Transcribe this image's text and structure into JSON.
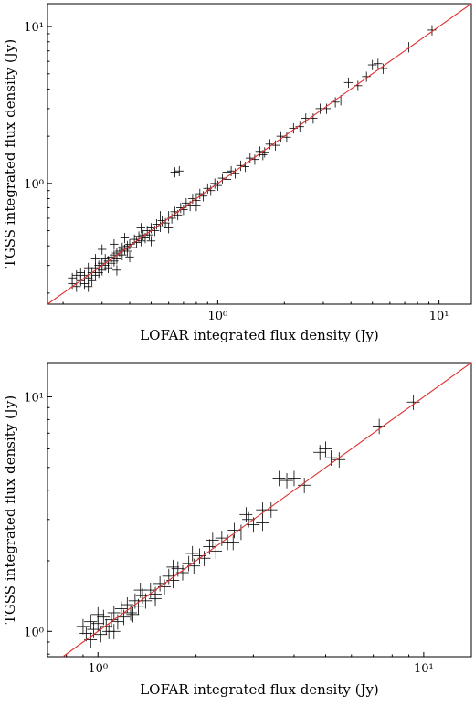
{
  "chart_data": [
    {
      "type": "scatter",
      "xlabel": "LOFAR integrated flux density (Jy)",
      "ylabel": "TGSS integrated flux density (Jy)",
      "xscale": "log",
      "yscale": "log",
      "xlim": [
        0.17,
        14
      ],
      "ylim": [
        0.17,
        14
      ],
      "xticks": [
        {
          "value": 1,
          "label": "10⁰"
        },
        {
          "value": 10,
          "label": "10¹"
        }
      ],
      "yticks": [
        {
          "value": 1,
          "label": "10⁰"
        },
        {
          "value": 10,
          "label": "10¹"
        }
      ],
      "grid": false,
      "reference_line": "y = x",
      "error_bars": true,
      "points": [
        [
          0.22,
          0.23
        ],
        [
          0.22,
          0.25
        ],
        [
          0.23,
          0.22
        ],
        [
          0.23,
          0.26
        ],
        [
          0.24,
          0.24
        ],
        [
          0.24,
          0.27
        ],
        [
          0.25,
          0.23
        ],
        [
          0.25,
          0.26
        ],
        [
          0.26,
          0.25
        ],
        [
          0.26,
          0.29
        ],
        [
          0.27,
          0.27
        ],
        [
          0.27,
          0.24
        ],
        [
          0.28,
          0.29
        ],
        [
          0.28,
          0.26
        ],
        [
          0.29,
          0.3
        ],
        [
          0.29,
          0.27
        ],
        [
          0.3,
          0.31
        ],
        [
          0.3,
          0.28
        ],
        [
          0.31,
          0.3
        ],
        [
          0.31,
          0.33
        ],
        [
          0.32,
          0.32
        ],
        [
          0.32,
          0.29
        ],
        [
          0.33,
          0.34
        ],
        [
          0.33,
          0.31
        ],
        [
          0.34,
          0.35
        ],
        [
          0.34,
          0.32
        ],
        [
          0.35,
          0.36
        ],
        [
          0.35,
          0.33
        ],
        [
          0.36,
          0.37
        ],
        [
          0.37,
          0.35
        ],
        [
          0.37,
          0.39
        ],
        [
          0.38,
          0.38
        ],
        [
          0.39,
          0.4
        ],
        [
          0.39,
          0.37
        ],
        [
          0.4,
          0.41
        ],
        [
          0.41,
          0.39
        ],
        [
          0.42,
          0.44
        ],
        [
          0.43,
          0.42
        ],
        [
          0.44,
          0.46
        ],
        [
          0.45,
          0.43
        ],
        [
          0.46,
          0.47
        ],
        [
          0.47,
          0.45
        ],
        [
          0.48,
          0.5
        ],
        [
          0.49,
          0.47
        ],
        [
          0.5,
          0.52
        ],
        [
          0.52,
          0.5
        ],
        [
          0.53,
          0.55
        ],
        [
          0.55,
          0.53
        ],
        [
          0.56,
          0.58
        ],
        [
          0.58,
          0.56
        ],
        [
          0.6,
          0.62
        ],
        [
          0.62,
          0.6
        ],
        [
          0.64,
          0.66
        ],
        [
          0.66,
          0.63
        ],
        [
          0.68,
          0.7
        ],
        [
          0.7,
          0.68
        ],
        [
          0.72,
          0.75
        ],
        [
          0.75,
          0.72
        ],
        [
          0.77,
          0.8
        ],
        [
          0.8,
          0.78
        ],
        [
          0.83,
          0.86
        ],
        [
          0.86,
          0.83
        ],
        [
          0.9,
          0.93
        ],
        [
          0.93,
          0.9
        ],
        [
          0.97,
          1.0
        ],
        [
          1.0,
          0.97
        ],
        [
          1.05,
          1.08
        ],
        [
          1.1,
          1.06
        ],
        [
          1.15,
          1.2
        ],
        [
          1.2,
          1.16
        ],
        [
          1.27,
          1.3
        ],
        [
          1.33,
          1.28
        ],
        [
          1.4,
          1.45
        ],
        [
          1.47,
          1.42
        ],
        [
          1.55,
          1.6
        ],
        [
          1.63,
          1.58
        ],
        [
          1.72,
          1.78
        ],
        [
          1.82,
          1.75
        ],
        [
          1.93,
          2.0
        ],
        [
          2.05,
          1.97
        ],
        [
          2.2,
          2.25
        ],
        [
          2.35,
          2.3
        ],
        [
          2.5,
          2.6
        ],
        [
          2.7,
          2.6
        ],
        [
          2.9,
          3.0
        ],
        [
          3.1,
          3.0
        ],
        [
          3.4,
          3.3
        ],
        [
          3.6,
          3.4
        ],
        [
          3.9,
          4.4
        ],
        [
          4.3,
          4.2
        ],
        [
          4.7,
          4.8
        ],
        [
          5.0,
          5.7
        ],
        [
          5.3,
          5.8
        ],
        [
          5.6,
          5.4
        ],
        [
          7.3,
          7.4
        ],
        [
          9.3,
          9.5
        ],
        [
          0.34,
          0.41
        ],
        [
          0.3,
          0.38
        ],
        [
          0.45,
          0.52
        ],
        [
          0.67,
          1.2
        ],
        [
          0.64,
          1.18
        ],
        [
          0.26,
          0.22
        ],
        [
          0.4,
          0.34
        ],
        [
          0.6,
          0.52
        ],
        [
          0.35,
          0.28
        ],
        [
          0.28,
          0.33
        ],
        [
          0.5,
          0.43
        ],
        [
          0.38,
          0.45
        ],
        [
          0.55,
          0.62
        ],
        [
          0.8,
          0.72
        ],
        [
          1.1,
          1.18
        ],
        [
          1.6,
          1.52
        ]
      ]
    },
    {
      "type": "scatter",
      "xlabel": "LOFAR integrated flux density (Jy)",
      "ylabel": "TGSS integrated flux density (Jy)",
      "xscale": "log",
      "yscale": "log",
      "xlim": [
        0.7,
        14
      ],
      "ylim": [
        0.78,
        14
      ],
      "xticks": [
        {
          "value": 1,
          "label": "10⁰"
        },
        {
          "value": 10,
          "label": "10¹"
        }
      ],
      "yticks": [
        {
          "value": 1,
          "label": "10⁰"
        },
        {
          "value": 10,
          "label": "10¹"
        }
      ],
      "grid": false,
      "reference_line": "y = x",
      "error_bars": true,
      "points": [
        [
          0.9,
          1.05
        ],
        [
          0.92,
          0.98
        ],
        [
          0.95,
          1.1
        ],
        [
          0.97,
          1.02
        ],
        [
          1.0,
          1.08
        ],
        [
          1.02,
          0.97
        ],
        [
          1.04,
          1.15
        ],
        [
          1.06,
          1.05
        ],
        [
          1.08,
          1.0
        ],
        [
          1.1,
          1.12
        ],
        [
          1.12,
          1.2
        ],
        [
          1.15,
          1.1
        ],
        [
          1.18,
          1.25
        ],
        [
          1.2,
          1.15
        ],
        [
          1.23,
          1.3
        ],
        [
          1.26,
          1.2
        ],
        [
          1.3,
          1.35
        ],
        [
          1.33,
          1.28
        ],
        [
          1.37,
          1.42
        ],
        [
          1.4,
          1.35
        ],
        [
          1.45,
          1.5
        ],
        [
          1.5,
          1.44
        ],
        [
          1.55,
          1.6
        ],
        [
          1.6,
          1.55
        ],
        [
          1.65,
          1.72
        ],
        [
          1.7,
          1.65
        ],
        [
          1.76,
          1.85
        ],
        [
          1.82,
          1.78
        ],
        [
          1.9,
          1.95
        ],
        [
          1.97,
          1.9
        ],
        [
          2.05,
          2.1
        ],
        [
          2.12,
          2.05
        ],
        [
          2.2,
          2.3
        ],
        [
          2.3,
          2.2
        ],
        [
          2.4,
          2.5
        ],
        [
          2.5,
          2.4
        ],
        [
          2.62,
          2.7
        ],
        [
          2.75,
          2.65
        ],
        [
          2.9,
          3.0
        ],
        [
          3.0,
          2.85
        ],
        [
          3.2,
          3.3
        ],
        [
          3.4,
          3.3
        ],
        [
          3.6,
          4.5
        ],
        [
          3.8,
          4.4
        ],
        [
          4.0,
          4.5
        ],
        [
          4.3,
          4.2
        ],
        [
          4.8,
          5.8
        ],
        [
          5.0,
          6.0
        ],
        [
          5.2,
          5.5
        ],
        [
          5.5,
          5.4
        ],
        [
          7.3,
          7.5
        ],
        [
          9.3,
          9.5
        ],
        [
          3.2,
          2.9
        ],
        [
          2.6,
          2.4
        ],
        [
          1.95,
          2.15
        ],
        [
          1.35,
          1.5
        ],
        [
          1.12,
          1.0
        ],
        [
          0.95,
          0.92
        ],
        [
          1.5,
          1.38
        ],
        [
          2.25,
          2.45
        ],
        [
          2.85,
          3.15
        ],
        [
          1.7,
          1.88
        ],
        [
          1.0,
          1.18
        ],
        [
          1.28,
          1.18
        ]
      ]
    }
  ]
}
